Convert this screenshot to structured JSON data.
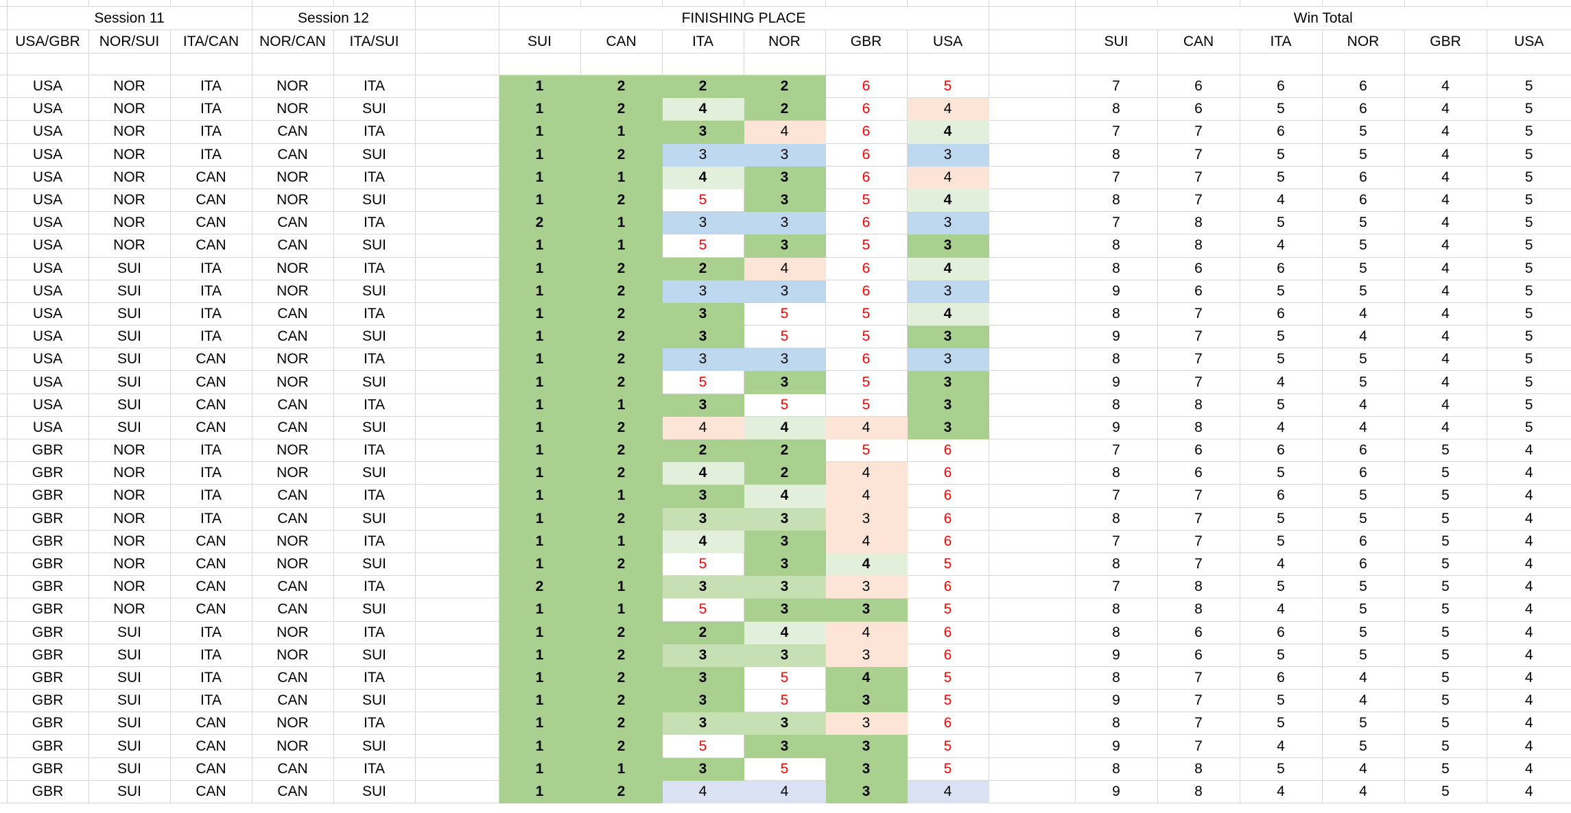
{
  "headers": {
    "session11": "Session 11",
    "session12": "Session 12",
    "finishing_place": "FINISHING PLACE",
    "win_total": "Win Total",
    "matchup_cols": [
      "USA/GBR",
      "NOR/SUI",
      "ITA/CAN",
      "NOR/CAN",
      "ITA/SUI"
    ],
    "finish_cols": [
      "SUI",
      "CAN",
      "ITA",
      "NOR",
      "GBR",
      "USA"
    ],
    "win_cols": [
      "SUI",
      "CAN",
      "ITA",
      "NOR",
      "GBR",
      "USA"
    ]
  },
  "palette": {
    "g1": "#a9d08e",
    "g2": "#c6e0b4",
    "g3": "#e2efda",
    "bl": "#bdd7ee",
    "lv": "#d9e1f2",
    "pk": "#fce4d6",
    "wh": "#ffffff",
    "red_text": "#ff0000",
    "black_text": "#000000",
    "gridline": "#d6d6d6"
  },
  "cell_format_legend": "finish cell string = value|fill|text  (fill: g1 strong green, g2 medium green, g3 pale green, bl blue, lv lavender, pk pink, wh white; text: b bold black, k black, r red)",
  "rows": [
    {
      "m": [
        "USA",
        "NOR",
        "ITA",
        "NOR",
        "ITA"
      ],
      "f": [
        "1|g1|b",
        "2|g1|b",
        "2|g1|b",
        "2|g1|b",
        "6|wh|r",
        "5|wh|r"
      ],
      "w": [
        7,
        6,
        6,
        6,
        4,
        5
      ]
    },
    {
      "m": [
        "USA",
        "NOR",
        "ITA",
        "NOR",
        "SUI"
      ],
      "f": [
        "1|g1|b",
        "2|g1|b",
        "4|g3|b",
        "2|g1|b",
        "6|wh|r",
        "4|pk|k"
      ],
      "w": [
        8,
        6,
        5,
        6,
        4,
        5
      ]
    },
    {
      "m": [
        "USA",
        "NOR",
        "ITA",
        "CAN",
        "ITA"
      ],
      "f": [
        "1|g1|b",
        "1|g1|b",
        "3|g1|b",
        "4|pk|k",
        "6|wh|r",
        "4|g3|b"
      ],
      "w": [
        7,
        7,
        6,
        5,
        4,
        5
      ]
    },
    {
      "m": [
        "USA",
        "NOR",
        "ITA",
        "CAN",
        "SUI"
      ],
      "f": [
        "1|g1|b",
        "2|g1|b",
        "3|bl|k",
        "3|bl|k",
        "6|wh|r",
        "3|bl|k"
      ],
      "w": [
        8,
        7,
        5,
        5,
        4,
        5
      ]
    },
    {
      "m": [
        "USA",
        "NOR",
        "CAN",
        "NOR",
        "ITA"
      ],
      "f": [
        "1|g1|b",
        "1|g1|b",
        "4|g3|b",
        "3|g1|b",
        "6|wh|r",
        "4|pk|k"
      ],
      "w": [
        7,
        7,
        5,
        6,
        4,
        5
      ]
    },
    {
      "m": [
        "USA",
        "NOR",
        "CAN",
        "NOR",
        "SUI"
      ],
      "f": [
        "1|g1|b",
        "2|g1|b",
        "5|wh|r",
        "3|g1|b",
        "5|wh|r",
        "4|g3|b"
      ],
      "w": [
        8,
        7,
        4,
        6,
        4,
        5
      ]
    },
    {
      "m": [
        "USA",
        "NOR",
        "CAN",
        "CAN",
        "ITA"
      ],
      "f": [
        "2|g1|b",
        "1|g1|b",
        "3|bl|k",
        "3|bl|k",
        "6|wh|r",
        "3|bl|k"
      ],
      "w": [
        7,
        8,
        5,
        5,
        4,
        5
      ]
    },
    {
      "m": [
        "USA",
        "NOR",
        "CAN",
        "CAN",
        "SUI"
      ],
      "f": [
        "1|g1|b",
        "1|g1|b",
        "5|wh|r",
        "3|g1|b",
        "5|wh|r",
        "3|g1|b"
      ],
      "w": [
        8,
        8,
        4,
        5,
        4,
        5
      ]
    },
    {
      "m": [
        "USA",
        "SUI",
        "ITA",
        "NOR",
        "ITA"
      ],
      "f": [
        "1|g1|b",
        "2|g1|b",
        "2|g1|b",
        "4|pk|k",
        "6|wh|r",
        "4|g3|b"
      ],
      "w": [
        8,
        6,
        6,
        5,
        4,
        5
      ]
    },
    {
      "m": [
        "USA",
        "SUI",
        "ITA",
        "NOR",
        "SUI"
      ],
      "f": [
        "1|g1|b",
        "2|g1|b",
        "3|bl|k",
        "3|bl|k",
        "6|wh|r",
        "3|bl|k"
      ],
      "w": [
        9,
        6,
        5,
        5,
        4,
        5
      ]
    },
    {
      "m": [
        "USA",
        "SUI",
        "ITA",
        "CAN",
        "ITA"
      ],
      "f": [
        "1|g1|b",
        "2|g1|b",
        "3|g1|b",
        "5|wh|r",
        "5|wh|r",
        "4|g3|b"
      ],
      "w": [
        8,
        7,
        6,
        4,
        4,
        5
      ]
    },
    {
      "m": [
        "USA",
        "SUI",
        "ITA",
        "CAN",
        "SUI"
      ],
      "f": [
        "1|g1|b",
        "2|g1|b",
        "3|g1|b",
        "5|wh|r",
        "5|wh|r",
        "3|g1|b"
      ],
      "w": [
        9,
        7,
        5,
        4,
        4,
        5
      ]
    },
    {
      "m": [
        "USA",
        "SUI",
        "CAN",
        "NOR",
        "ITA"
      ],
      "f": [
        "1|g1|b",
        "2|g1|b",
        "3|bl|k",
        "3|bl|k",
        "6|wh|r",
        "3|bl|k"
      ],
      "w": [
        8,
        7,
        5,
        5,
        4,
        5
      ]
    },
    {
      "m": [
        "USA",
        "SUI",
        "CAN",
        "NOR",
        "SUI"
      ],
      "f": [
        "1|g1|b",
        "2|g1|b",
        "5|wh|r",
        "3|g1|b",
        "5|wh|r",
        "3|g1|b"
      ],
      "w": [
        9,
        7,
        4,
        5,
        4,
        5
      ]
    },
    {
      "m": [
        "USA",
        "SUI",
        "CAN",
        "CAN",
        "ITA"
      ],
      "f": [
        "1|g1|b",
        "1|g1|b",
        "3|g1|b",
        "5|wh|r",
        "5|wh|r",
        "3|g1|b"
      ],
      "w": [
        8,
        8,
        5,
        4,
        4,
        5
      ]
    },
    {
      "m": [
        "USA",
        "SUI",
        "CAN",
        "CAN",
        "SUI"
      ],
      "f": [
        "1|g1|b",
        "2|g1|b",
        "4|pk|k",
        "4|g3|b",
        "4|pk|k",
        "3|g1|b"
      ],
      "w": [
        9,
        8,
        4,
        4,
        4,
        5
      ]
    },
    {
      "m": [
        "GBR",
        "NOR",
        "ITA",
        "NOR",
        "ITA"
      ],
      "f": [
        "1|g1|b",
        "2|g1|b",
        "2|g1|b",
        "2|g1|b",
        "5|wh|r",
        "6|wh|r"
      ],
      "w": [
        7,
        6,
        6,
        6,
        5,
        4
      ]
    },
    {
      "m": [
        "GBR",
        "NOR",
        "ITA",
        "NOR",
        "SUI"
      ],
      "f": [
        "1|g1|b",
        "2|g1|b",
        "4|g3|b",
        "2|g1|b",
        "4|pk|k",
        "6|wh|r"
      ],
      "w": [
        8,
        6,
        5,
        6,
        5,
        4
      ]
    },
    {
      "m": [
        "GBR",
        "NOR",
        "ITA",
        "CAN",
        "ITA"
      ],
      "f": [
        "1|g1|b",
        "1|g1|b",
        "3|g1|b",
        "4|g3|b",
        "4|pk|k",
        "6|wh|r"
      ],
      "w": [
        7,
        7,
        6,
        5,
        5,
        4
      ]
    },
    {
      "m": [
        "GBR",
        "NOR",
        "ITA",
        "CAN",
        "SUI"
      ],
      "f": [
        "1|g1|b",
        "2|g1|b",
        "3|g2|b",
        "3|g2|b",
        "3|pk|k",
        "6|wh|r"
      ],
      "w": [
        8,
        7,
        5,
        5,
        5,
        4
      ]
    },
    {
      "m": [
        "GBR",
        "NOR",
        "CAN",
        "NOR",
        "ITA"
      ],
      "f": [
        "1|g1|b",
        "1|g1|b",
        "4|g3|b",
        "3|g1|b",
        "4|pk|k",
        "6|wh|r"
      ],
      "w": [
        7,
        7,
        5,
        6,
        5,
        4
      ]
    },
    {
      "m": [
        "GBR",
        "NOR",
        "CAN",
        "NOR",
        "SUI"
      ],
      "f": [
        "1|g1|b",
        "2|g1|b",
        "5|wh|r",
        "3|g1|b",
        "4|g3|b",
        "5|wh|r"
      ],
      "w": [
        8,
        7,
        4,
        6,
        5,
        4
      ]
    },
    {
      "m": [
        "GBR",
        "NOR",
        "CAN",
        "CAN",
        "ITA"
      ],
      "f": [
        "2|g1|b",
        "1|g1|b",
        "3|g2|b",
        "3|g2|b",
        "3|pk|k",
        "6|wh|r"
      ],
      "w": [
        7,
        8,
        5,
        5,
        5,
        4
      ]
    },
    {
      "m": [
        "GBR",
        "NOR",
        "CAN",
        "CAN",
        "SUI"
      ],
      "f": [
        "1|g1|b",
        "1|g1|b",
        "5|wh|r",
        "3|g1|b",
        "3|g1|b",
        "5|wh|r"
      ],
      "w": [
        8,
        8,
        4,
        5,
        5,
        4
      ]
    },
    {
      "m": [
        "GBR",
        "SUI",
        "ITA",
        "NOR",
        "ITA"
      ],
      "f": [
        "1|g1|b",
        "2|g1|b",
        "2|g1|b",
        "4|g3|b",
        "4|pk|k",
        "6|wh|r"
      ],
      "w": [
        8,
        6,
        6,
        5,
        5,
        4
      ]
    },
    {
      "m": [
        "GBR",
        "SUI",
        "ITA",
        "NOR",
        "SUI"
      ],
      "f": [
        "1|g1|b",
        "2|g1|b",
        "3|g2|b",
        "3|g2|b",
        "3|pk|k",
        "6|wh|r"
      ],
      "w": [
        9,
        6,
        5,
        5,
        5,
        4
      ]
    },
    {
      "m": [
        "GBR",
        "SUI",
        "ITA",
        "CAN",
        "ITA"
      ],
      "f": [
        "1|g1|b",
        "2|g1|b",
        "3|g1|b",
        "5|wh|r",
        "4|g1|b",
        "5|wh|r"
      ],
      "w": [
        8,
        7,
        6,
        4,
        5,
        4
      ]
    },
    {
      "m": [
        "GBR",
        "SUI",
        "ITA",
        "CAN",
        "SUI"
      ],
      "f": [
        "1|g1|b",
        "2|g1|b",
        "3|g1|b",
        "5|wh|r",
        "3|g1|b",
        "5|wh|r"
      ],
      "w": [
        9,
        7,
        5,
        4,
        5,
        4
      ]
    },
    {
      "m": [
        "GBR",
        "SUI",
        "CAN",
        "NOR",
        "ITA"
      ],
      "f": [
        "1|g1|b",
        "2|g1|b",
        "3|g2|b",
        "3|g2|b",
        "3|pk|k",
        "6|wh|r"
      ],
      "w": [
        8,
        7,
        5,
        5,
        5,
        4
      ]
    },
    {
      "m": [
        "GBR",
        "SUI",
        "CAN",
        "NOR",
        "SUI"
      ],
      "f": [
        "1|g1|b",
        "2|g1|b",
        "5|wh|r",
        "3|g1|b",
        "3|g1|b",
        "5|wh|r"
      ],
      "w": [
        9,
        7,
        4,
        5,
        5,
        4
      ]
    },
    {
      "m": [
        "GBR",
        "SUI",
        "CAN",
        "CAN",
        "ITA"
      ],
      "f": [
        "1|g1|b",
        "1|g1|b",
        "3|g1|b",
        "5|wh|r",
        "3|g1|b",
        "5|wh|r"
      ],
      "w": [
        8,
        8,
        5,
        4,
        5,
        4
      ]
    },
    {
      "m": [
        "GBR",
        "SUI",
        "CAN",
        "CAN",
        "SUI"
      ],
      "f": [
        "1|g1|b",
        "2|g1|b",
        "4|lv|k",
        "4|lv|k",
        "3|g1|b",
        "4|lv|k"
      ],
      "w": [
        9,
        8,
        4,
        4,
        5,
        4
      ]
    }
  ]
}
